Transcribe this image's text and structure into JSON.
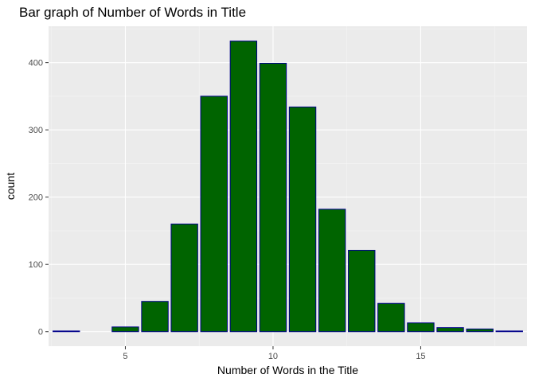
{
  "chart_data": {
    "type": "bar",
    "title": "Bar graph of Number of Words in Title",
    "xlabel": "Number of Words in the Title",
    "ylabel": "count",
    "x": [
      3,
      4,
      5,
      6,
      7,
      8,
      9,
      10,
      11,
      12,
      13,
      14,
      15,
      16,
      17,
      18
    ],
    "values": [
      1,
      0,
      7,
      45,
      160,
      350,
      432,
      399,
      334,
      182,
      121,
      42,
      13,
      6,
      4,
      1
    ],
    "xlim": [
      2.4,
      18.6
    ],
    "ylim": [
      -21.6,
      454
    ],
    "xticks": [
      5,
      10,
      15
    ],
    "yticks": [
      0,
      100,
      200,
      300,
      400
    ],
    "grid": true,
    "legend": "none",
    "colors": {
      "bar_fill": "#006400",
      "bar_outline": "#00008b",
      "panel_background": "#ebebeb",
      "grid_major": "#ffffff",
      "grid_minor": "#f5f5f5",
      "tick_label": "#4d4d4d",
      "tick_mark": "#333333"
    }
  }
}
